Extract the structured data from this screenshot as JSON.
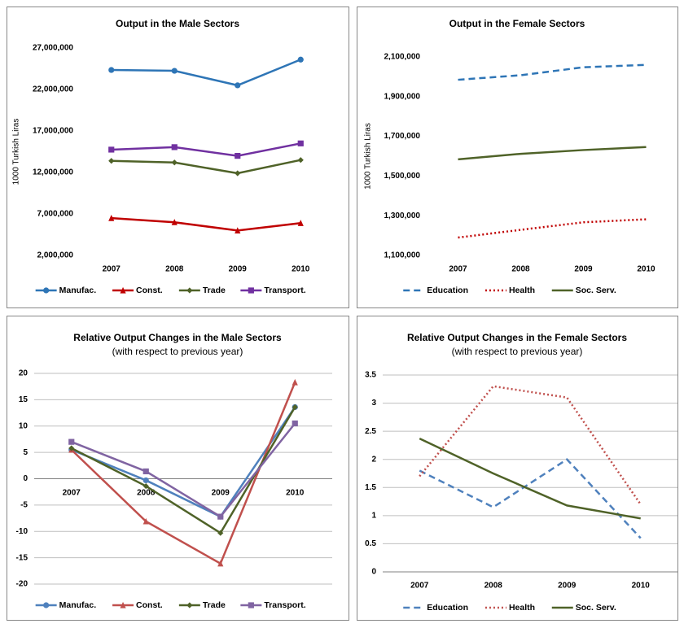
{
  "chart_data": [
    {
      "type": "line",
      "title": "Output in the Male Sectors",
      "y_label": "1000 Turkish Liras",
      "grid": false,
      "categories": [
        "2007",
        "2008",
        "2009",
        "2010"
      ],
      "ylim": [
        2000000,
        27000000
      ],
      "yticks": [
        {
          "value": 2000000,
          "label": "2,000,000"
        },
        {
          "value": 7000000,
          "label": "7,000,000"
        },
        {
          "value": 12000000,
          "label": "12,000,000"
        },
        {
          "value": 17000000,
          "label": "17,000,000"
        },
        {
          "value": 22000000,
          "label": "22,000,000"
        },
        {
          "value": 27000000,
          "label": "27,000,000"
        }
      ],
      "series": [
        {
          "name": "Manufac.",
          "color": "#2e75b6",
          "marker": "circle",
          "dash": "solid",
          "values": [
            24350000,
            24250000,
            22500000,
            25600000
          ]
        },
        {
          "name": "Const.",
          "color": "#c00000",
          "marker": "triangle",
          "dash": "solid",
          "values": [
            6500000,
            6000000,
            5000000,
            5900000
          ]
        },
        {
          "name": "Trade",
          "color": "#4f6228",
          "marker": "diamond",
          "dash": "solid",
          "values": [
            13400000,
            13200000,
            11900000,
            13500000
          ]
        },
        {
          "name": "Transport.",
          "color": "#7030a0",
          "marker": "square",
          "dash": "solid",
          "values": [
            14750000,
            15050000,
            14000000,
            15500000
          ]
        }
      ]
    },
    {
      "type": "line",
      "title": "Output in the Female Sectors",
      "y_label": "1000 Turkish Liras",
      "grid": false,
      "categories": [
        "2007",
        "2008",
        "2009",
        "2010"
      ],
      "ylim": [
        1100000,
        2100000
      ],
      "yticks": [
        {
          "value": 1100000,
          "label": "1,100,000"
        },
        {
          "value": 1300000,
          "label": "1,300,000"
        },
        {
          "value": 1500000,
          "label": "1,500,000"
        },
        {
          "value": 1700000,
          "label": "1,700,000"
        },
        {
          "value": 1900000,
          "label": "1,900,000"
        },
        {
          "value": 2100000,
          "label": "2,100,000"
        }
      ],
      "series": [
        {
          "name": "Education",
          "color": "#2e75b6",
          "marker": "none",
          "dash": "dashed",
          "values": [
            1985000,
            2008000,
            2048000,
            2060000
          ]
        },
        {
          "name": "Health",
          "color": "#c00000",
          "marker": "none",
          "dash": "dotted",
          "values": [
            1190000,
            1229000,
            1267000,
            1282000
          ]
        },
        {
          "name": "Soc. Serv.",
          "color": "#4f6228",
          "marker": "none",
          "dash": "solid",
          "values": [
            1584000,
            1612000,
            1631000,
            1646000
          ]
        }
      ]
    },
    {
      "type": "line",
      "title": "Relative Output Changes in the Male Sectors",
      "subtitle": "(with respect to previous year)",
      "grid": true,
      "categories": [
        "2007",
        "2008",
        "2009",
        "2010"
      ],
      "ylim": [
        -20,
        20
      ],
      "yticks": [
        -20,
        -15,
        -10,
        -5,
        0,
        5,
        10,
        15,
        20
      ],
      "series": [
        {
          "name": "Manufac.",
          "color": "#4f81bd",
          "marker": "circle",
          "dash": "solid",
          "values": [
            5.5,
            -0.3,
            -7.2,
            13.6
          ]
        },
        {
          "name": "Const.",
          "color": "#c0504d",
          "marker": "triangle",
          "dash": "solid",
          "values": [
            5.5,
            -8.1,
            -16.1,
            18.3
          ]
        },
        {
          "name": "Trade",
          "color": "#4f6228",
          "marker": "diamond",
          "dash": "solid",
          "values": [
            5.8,
            -1.4,
            -10.3,
            13.6
          ]
        },
        {
          "name": "Transport.",
          "color": "#8064a2",
          "marker": "square",
          "dash": "solid",
          "values": [
            7.0,
            1.4,
            -7.2,
            10.5
          ]
        }
      ]
    },
    {
      "type": "line",
      "title": "Relative Output Changes in the Female Sectors",
      "subtitle": "(with respect to previous year)",
      "grid": true,
      "categories": [
        "2007",
        "2008",
        "2009",
        "2010"
      ],
      "ylim": [
        0,
        3.5
      ],
      "yticks": [
        0,
        0.5,
        1,
        1.5,
        2,
        2.5,
        3,
        3.5
      ],
      "series": [
        {
          "name": "Education",
          "color": "#4f81bd",
          "marker": "none",
          "dash": "dashed",
          "values": [
            1.8,
            1.15,
            2.0,
            0.6
          ]
        },
        {
          "name": "Health",
          "color": "#c0504d",
          "marker": "none",
          "dash": "dotted",
          "values": [
            1.7,
            3.3,
            3.1,
            1.2
          ]
        },
        {
          "name": "Soc. Serv.",
          "color": "#4f6228",
          "marker": "none",
          "dash": "solid",
          "values": [
            2.37,
            1.75,
            1.18,
            0.95
          ]
        }
      ]
    }
  ]
}
